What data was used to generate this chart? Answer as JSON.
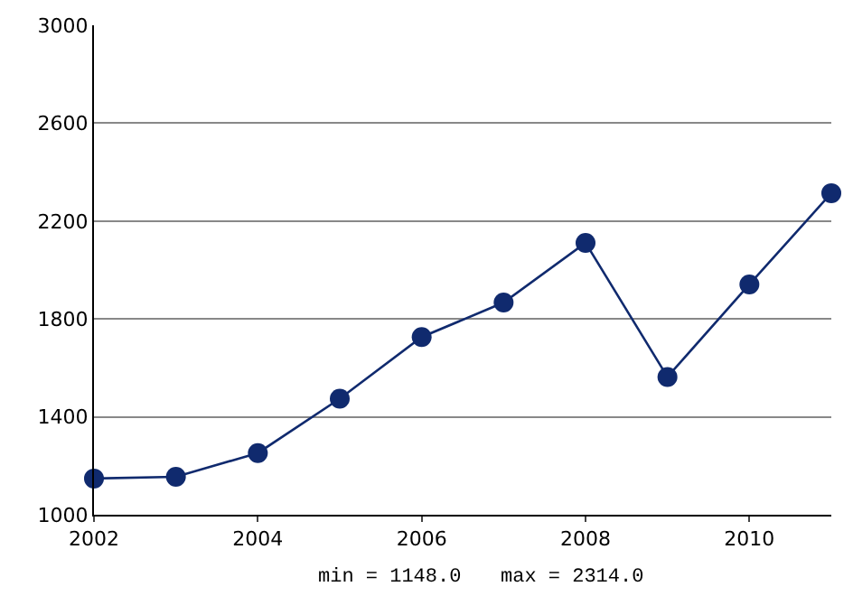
{
  "chart_data": {
    "type": "line",
    "x": [
      2002,
      2003,
      2004,
      2005,
      2006,
      2007,
      2008,
      2009,
      2010,
      2011
    ],
    "series": [
      {
        "color": "#102a6e",
        "values": [
          1148,
          1155,
          1252,
          1474,
          1726,
          1867,
          2111,
          1563,
          1941,
          2314
        ]
      }
    ],
    "xlim": [
      2002,
      2011
    ],
    "xticks": [
      2002,
      2004,
      2006,
      2008,
      2010
    ],
    "ylim": [
      1000,
      3000
    ],
    "yticks": [
      1000,
      1400,
      1800,
      2200,
      2600,
      3000
    ],
    "grid": "y",
    "marker": "circle",
    "line_style": "solid",
    "annotations": [
      "min = 1148.0",
      "max = 2314.0"
    ]
  }
}
